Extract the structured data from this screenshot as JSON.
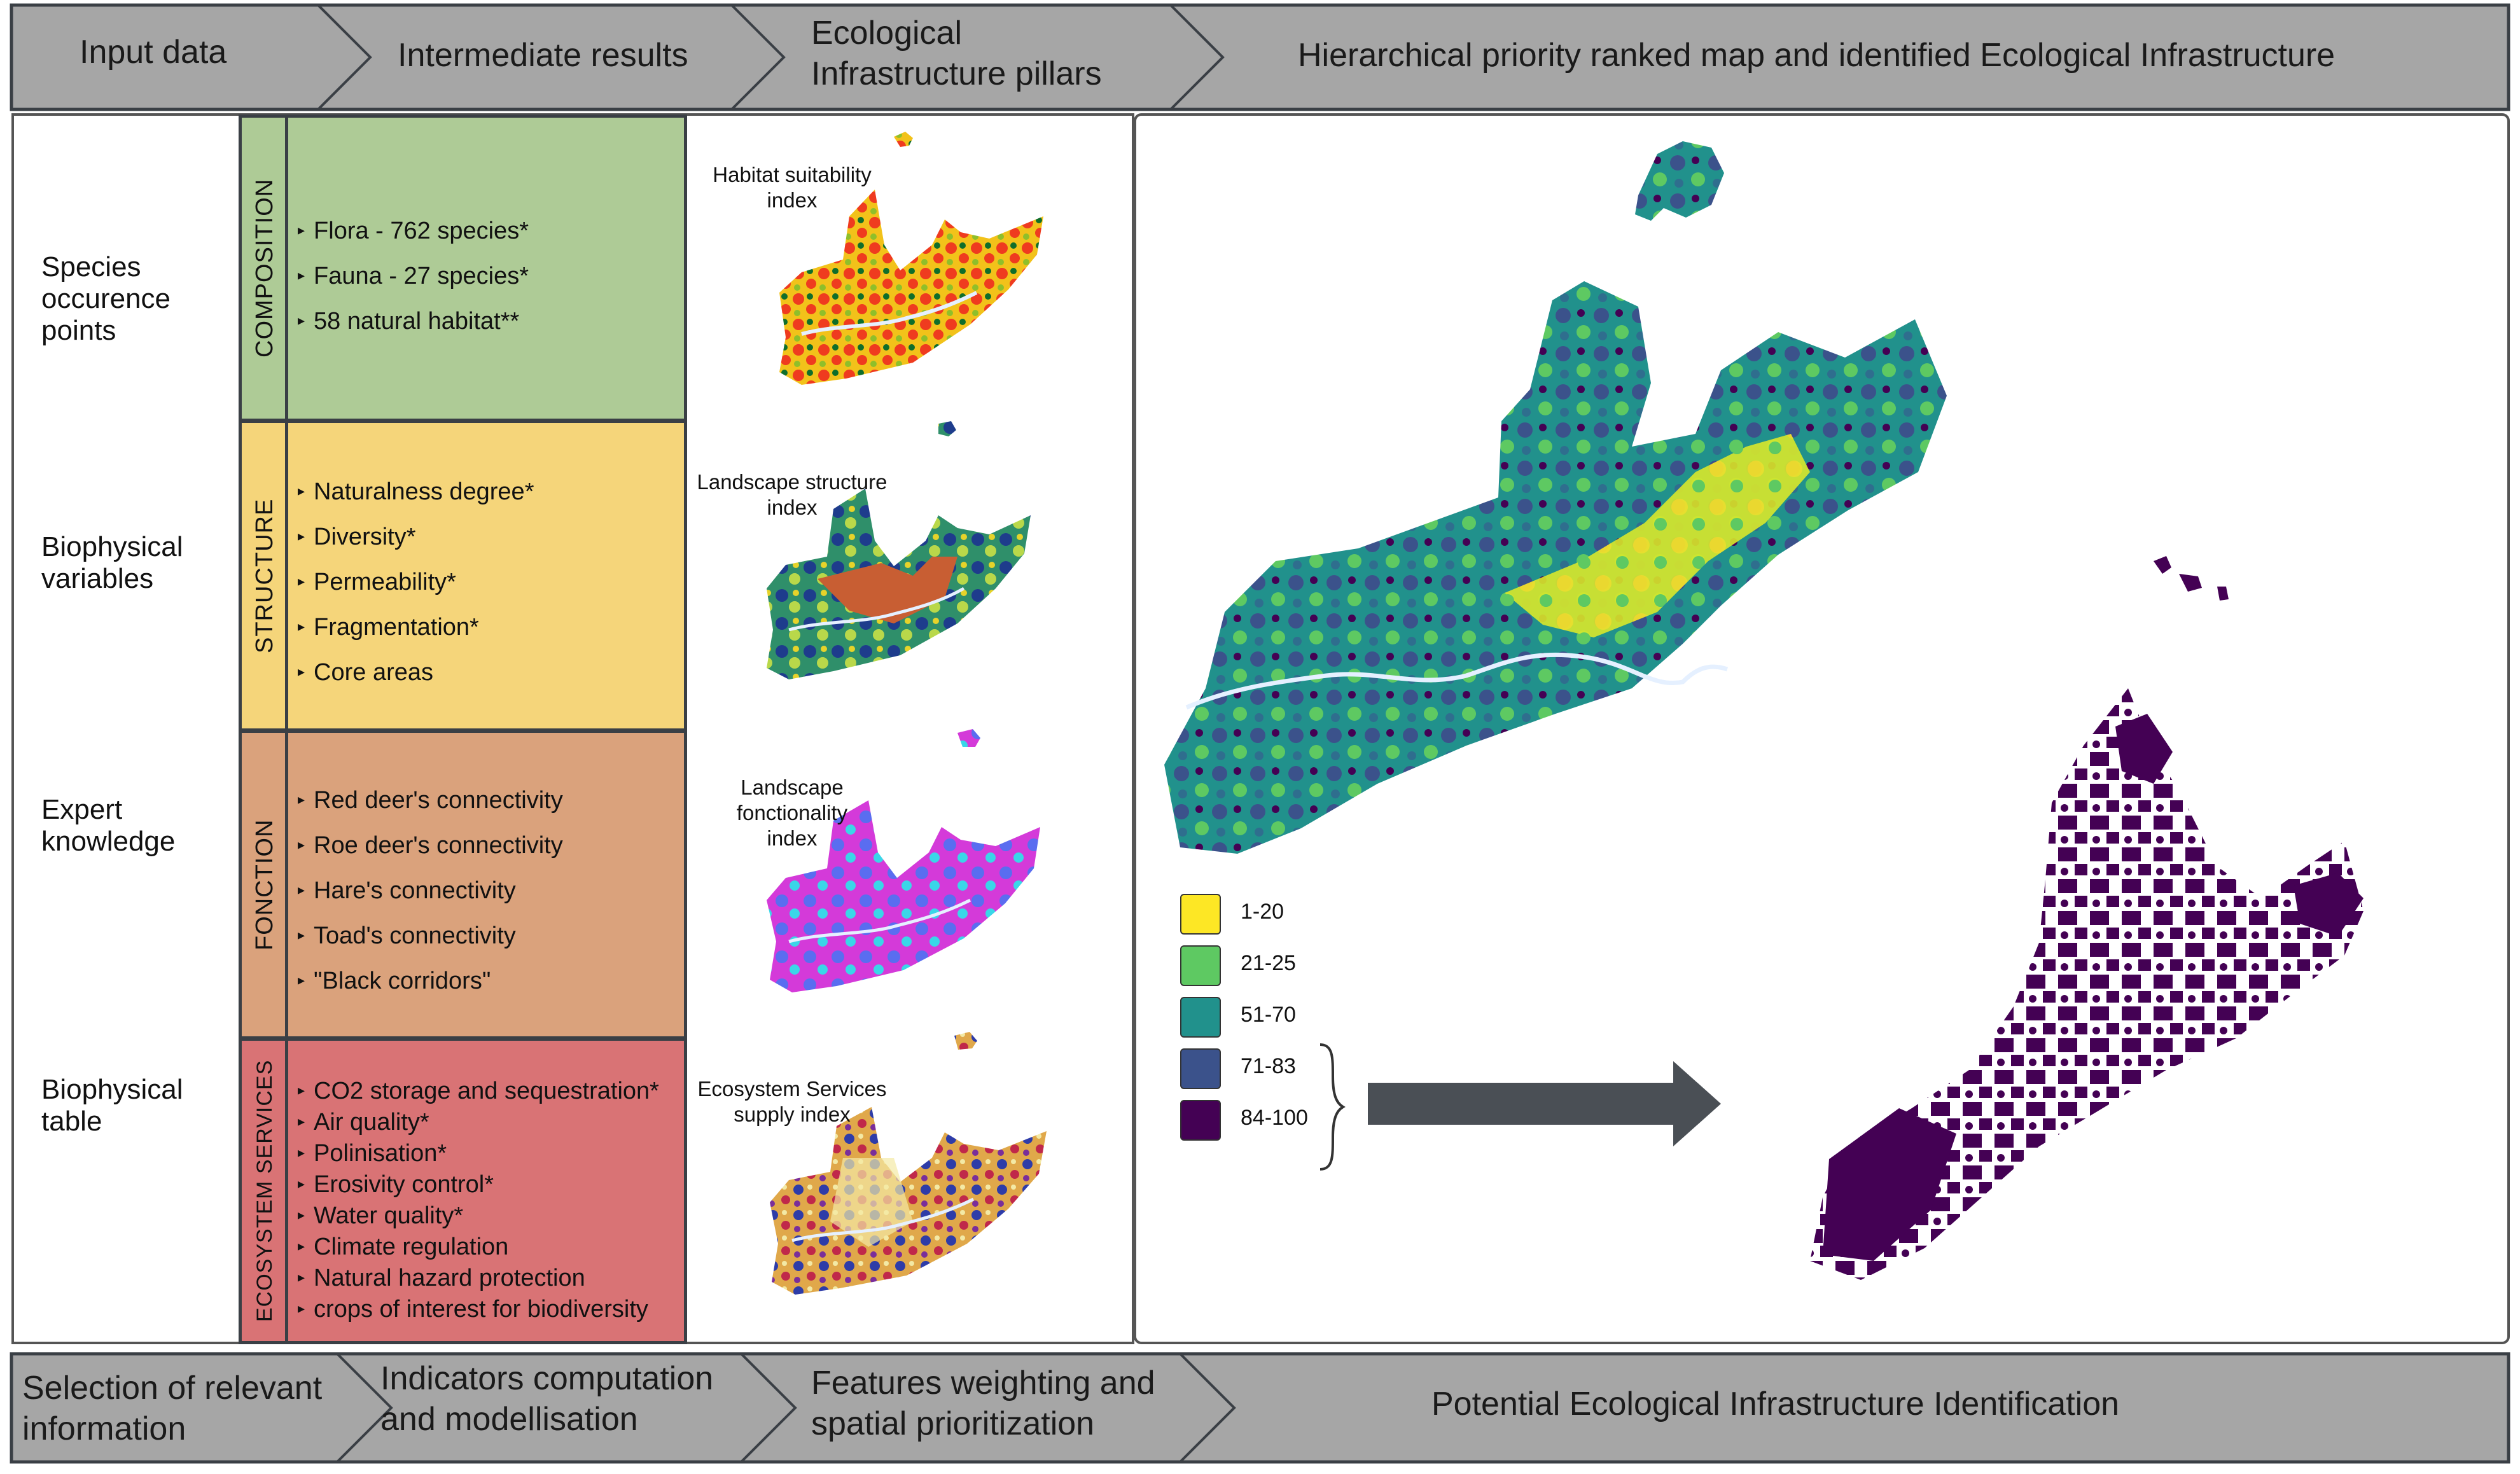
{
  "header_top": {
    "steps": [
      "Input data",
      "Intermediate results",
      "Ecological Infrastructure pillars",
      "Hierarchical priority ranked map and identified Ecological Infrastructure"
    ]
  },
  "header_bottom": {
    "steps": [
      "Selection of relevant information",
      "Indicators computation and modellisation",
      "Features weighting and spatial prioritization",
      "Potential Ecological Infrastructure Identification"
    ]
  },
  "inputs": [
    "Species occurence points",
    "Biophysical variables",
    "Expert knowledge",
    "Biophysical table"
  ],
  "pillars": [
    {
      "name": "COMPOSITION",
      "color": "#aecb96",
      "items": [
        "Flora - 762 species*",
        "Fauna - 27 species*",
        "58 natural habitat**"
      ],
      "map_label": "Habitat suitability index"
    },
    {
      "name": "STRUCTURE",
      "color": "#f5d57a",
      "items": [
        "Naturalness degree*",
        "Diversity*",
        "Permeability*",
        "Fragmentation*",
        "Core areas"
      ],
      "map_label": "Landscape structure index"
    },
    {
      "name": "FONCTION",
      "color": "#daa27c",
      "items": [
        "Red deer's connectivity",
        "Roe deer's connectivity",
        "Hare's connectivity",
        "Toad's connectivity",
        "\"Black corridors\""
      ],
      "map_label": "Landscape fonctionality index"
    },
    {
      "name": "ECOSYSTEM SERVICES",
      "color": "#d97375",
      "items": [
        "CO2 storage and sequestration*",
        "Air quality*",
        "Polinisation*",
        "Erosivity control*",
        "Water quality*",
        "Climate regulation",
        "Natural hazard protection",
        "crops of interest for biodiversity"
      ],
      "map_label": "Ecosystem Services supply index"
    }
  ],
  "legend": [
    {
      "label": "1-20",
      "color": "#fde725"
    },
    {
      "label": "21-25",
      "color": "#5ec962"
    },
    {
      "label": "51-70",
      "color": "#21918c"
    },
    {
      "label": "71-83",
      "color": "#3b528b"
    },
    {
      "label": "84-100",
      "color": "#440154"
    }
  ],
  "colors": {
    "header_bg": "#a6a6a6",
    "border": "#3a3f45",
    "arrow": "#4a4f55"
  }
}
